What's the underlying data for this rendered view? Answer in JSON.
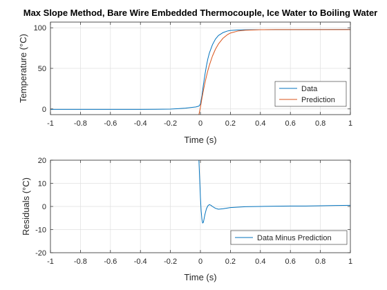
{
  "chart_data": [
    {
      "type": "line",
      "title": "Max Slope Method, Bare Wire Embedded Thermocouple, Ice Water to Boiling Water",
      "xlabel": "Time (s)",
      "ylabel": "Temperature (°C)",
      "xlim": [
        -1,
        1
      ],
      "ylim": [
        -7,
        107
      ],
      "xticks": [
        "-1",
        "-0.8",
        "-0.6",
        "-0.4",
        "-0.2",
        "0",
        "0.2",
        "0.4",
        "0.6",
        "0.8",
        "1"
      ],
      "yticks": [
        "0",
        "50",
        "100"
      ],
      "grid": true,
      "legend_position": "bottom-right",
      "series": [
        {
          "name": "Data",
          "color": "#0072BD",
          "x": [
            -1,
            -0.8,
            -0.6,
            -0.4,
            -0.3,
            -0.2,
            -0.15,
            -0.1,
            -0.06,
            -0.03,
            -0.01,
            0,
            0.01,
            0.02,
            0.03,
            0.04,
            0.05,
            0.06,
            0.08,
            0.1,
            0.12,
            0.15,
            0.18,
            0.2,
            0.25,
            0.3,
            0.4,
            0.5,
            0.6,
            0.8,
            1
          ],
          "y": [
            -0.5,
            -0.5,
            -0.5,
            -0.5,
            -0.4,
            -0.2,
            0.3,
            1.0,
            1.8,
            2.5,
            3.5,
            6,
            16,
            30,
            42,
            53,
            62,
            69,
            79,
            86,
            90.5,
            94,
            96,
            96.7,
            97.3,
            97.5,
            97.6,
            97.7,
            97.7,
            97.8,
            98
          ]
        },
        {
          "name": "Prediction",
          "color": "#D95319",
          "x": [
            -0.01,
            0,
            0.01,
            0.02,
            0.03,
            0.04,
            0.05,
            0.06,
            0.08,
            0.1,
            0.12,
            0.15,
            0.18,
            0.2,
            0.25,
            0.3,
            0.4,
            0.5,
            0.6,
            0.8,
            1
          ],
          "y": [
            -8,
            2,
            13,
            23,
            32,
            40,
            47.5,
            54,
            65,
            73.5,
            80,
            87,
            91.5,
            93.5,
            96,
            97,
            97.6,
            97.7,
            97.7,
            97.7,
            97.7
          ]
        }
      ]
    },
    {
      "type": "line",
      "xlabel": "Time (s)",
      "ylabel": "Residuals (°C)",
      "xlim": [
        -1,
        1
      ],
      "ylim": [
        -20,
        20
      ],
      "xticks": [
        "-1",
        "-0.8",
        "-0.6",
        "-0.4",
        "-0.2",
        "0",
        "0.2",
        "0.4",
        "0.6",
        "0.8",
        "1"
      ],
      "yticks": [
        "-20",
        "-10",
        "0",
        "10",
        "20"
      ],
      "grid": true,
      "legend_position": "bottom-right",
      "series": [
        {
          "name": "Data Minus Prediction",
          "color": "#0072BD",
          "x": [
            -0.01,
            -0.005,
            0,
            0.005,
            0.01,
            0.015,
            0.02,
            0.03,
            0.04,
            0.05,
            0.06,
            0.07,
            0.08,
            0.1,
            0.12,
            0.15,
            0.2,
            0.3,
            0.4,
            0.5,
            0.6,
            0.7,
            0.8,
            0.9,
            1
          ],
          "y": [
            20,
            12,
            4,
            -2,
            -5.5,
            -7.2,
            -6.8,
            -3.5,
            -1,
            0.3,
            0.8,
            0.5,
            0,
            -0.8,
            -1.2,
            -1.0,
            -0.5,
            -0.1,
            0,
            0.1,
            0.2,
            0.2,
            0.3,
            0.4,
            0.5
          ]
        }
      ]
    }
  ]
}
